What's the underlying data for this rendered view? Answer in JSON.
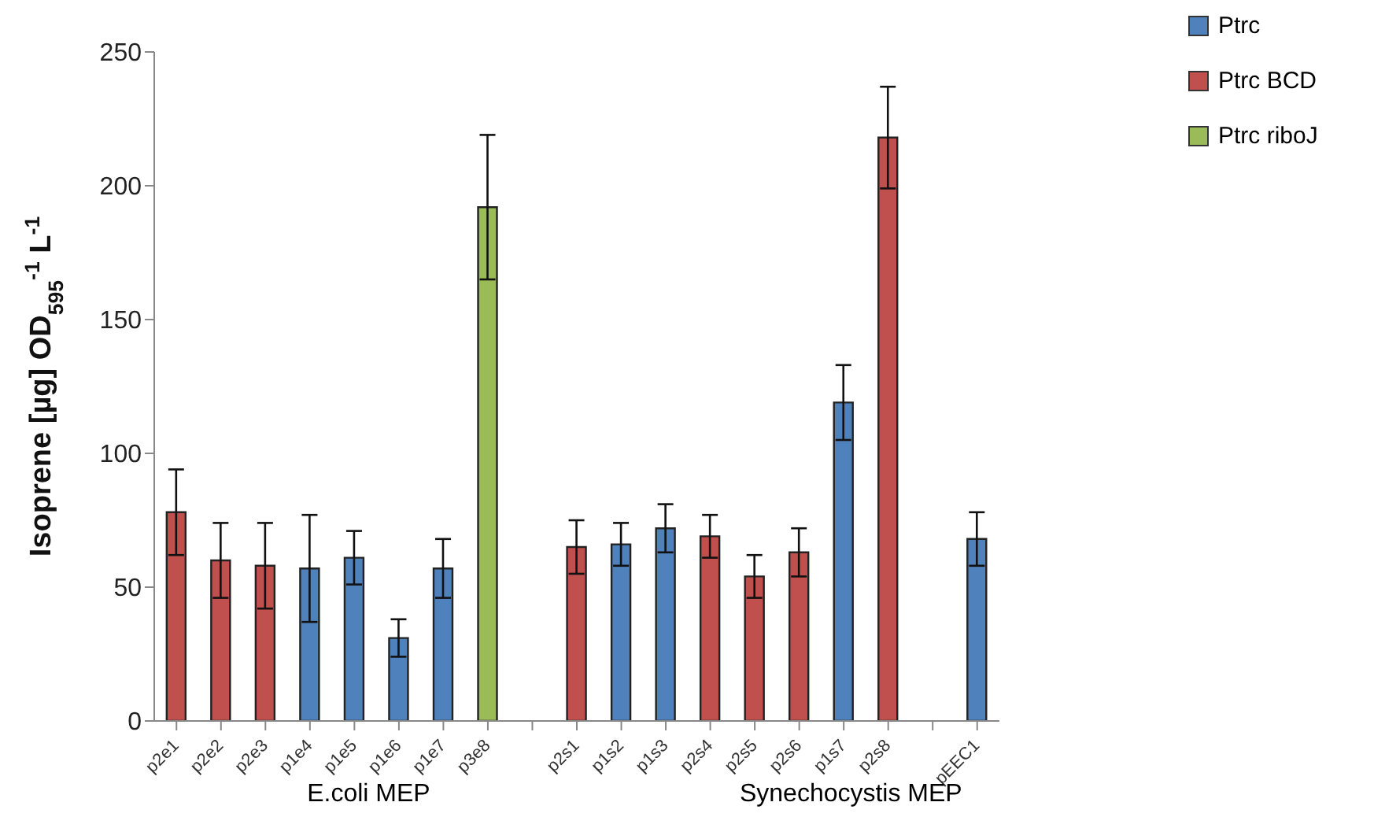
{
  "chart_data": {
    "type": "bar",
    "ylabel": "Isoprene [µg] OD$_{595}$$^{-1}$ L$^{-1}$",
    "categories": [
      "p2e1",
      "p2e2",
      "p2e3",
      "p1e4",
      "p1e5",
      "p1e6",
      "p1e7",
      "p3e8",
      null,
      "p2s1",
      "p1s2",
      "p1s3",
      "p2s4",
      "p2s5",
      "p2s6",
      "p1s7",
      "p2s8",
      null,
      "pEEC1"
    ],
    "series": [
      {
        "name": "Ptrc",
        "color": "#4f81bd",
        "values": [
          null,
          null,
          null,
          57,
          61,
          31,
          57,
          null,
          null,
          null,
          66,
          72,
          null,
          null,
          null,
          119,
          null,
          null,
          68
        ],
        "errors": [
          null,
          null,
          null,
          20,
          10,
          7,
          11,
          null,
          null,
          null,
          8,
          9,
          null,
          null,
          null,
          14,
          null,
          null,
          10
        ]
      },
      {
        "name": "Ptrc BCD",
        "color": "#c0504d",
        "values": [
          78,
          60,
          58,
          null,
          null,
          null,
          null,
          null,
          null,
          65,
          null,
          null,
          69,
          54,
          63,
          null,
          218,
          null,
          null
        ],
        "errors": [
          16,
          14,
          16,
          null,
          null,
          null,
          null,
          null,
          null,
          10,
          null,
          null,
          8,
          8,
          9,
          null,
          19,
          null,
          null
        ]
      },
      {
        "name": "Ptrc riboJ",
        "color": "#9bbb59",
        "values": [
          null,
          null,
          null,
          null,
          null,
          null,
          null,
          192,
          null,
          null,
          null,
          null,
          null,
          null,
          null,
          null,
          null,
          null,
          null
        ],
        "errors": [
          null,
          null,
          null,
          null,
          null,
          null,
          null,
          27,
          null,
          null,
          null,
          null,
          null,
          null,
          null,
          null,
          null,
          null,
          null
        ]
      }
    ],
    "stacked": true,
    "ylim": [
      0,
      250
    ],
    "yticks": [
      0,
      50,
      100,
      150,
      200,
      250
    ],
    "grid": false,
    "legend": "top right",
    "annotations": [
      "E.coli MEP",
      "Synechocystis MEP"
    ]
  }
}
